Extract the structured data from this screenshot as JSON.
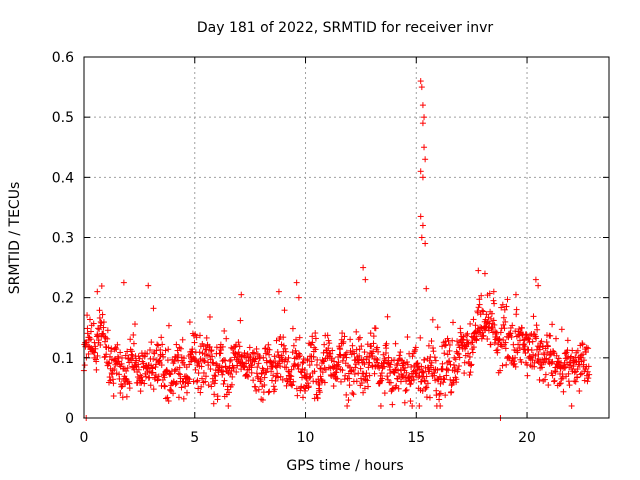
{
  "chart_data": {
    "type": "scatter",
    "title": "Day 181 of 2022, SRMTID for receiver invr",
    "xlabel": "GPS time / hours",
    "ylabel": "SRMTID / TECUs",
    "xlim": [
      0,
      23.7
    ],
    "ylim": [
      0,
      0.6
    ],
    "xticks": [
      0,
      5,
      10,
      15,
      20
    ],
    "yticks": [
      0,
      0.1,
      0.2,
      0.3,
      0.4,
      0.5,
      0.6
    ],
    "xtick_labels": [
      "0",
      "5",
      "10",
      "15",
      "20"
    ],
    "ytick_labels": [
      "0",
      "0.1",
      "0.2",
      "0.3",
      "0.4",
      "0.5",
      "0.6"
    ],
    "grid": true,
    "marker": "+",
    "color": "#ff0000",
    "series": [
      {
        "name": "SRMTID",
        "baseline_profile": [
          [
            0.0,
            0.11
          ],
          [
            0.5,
            0.12
          ],
          [
            0.8,
            0.14
          ],
          [
            1.2,
            0.09
          ],
          [
            2.0,
            0.08
          ],
          [
            3.0,
            0.09
          ],
          [
            4.0,
            0.075
          ],
          [
            5.0,
            0.09
          ],
          [
            6.0,
            0.08
          ],
          [
            7.0,
            0.09
          ],
          [
            8.0,
            0.075
          ],
          [
            9.0,
            0.09
          ],
          [
            10.0,
            0.075
          ],
          [
            11.0,
            0.08
          ],
          [
            12.0,
            0.085
          ],
          [
            13.0,
            0.09
          ],
          [
            14.0,
            0.08
          ],
          [
            15.0,
            0.07
          ],
          [
            16.0,
            0.075
          ],
          [
            17.0,
            0.1
          ],
          [
            18.0,
            0.15
          ],
          [
            19.0,
            0.13
          ],
          [
            20.0,
            0.12
          ],
          [
            21.0,
            0.09
          ],
          [
            22.0,
            0.08
          ],
          [
            22.8,
            0.09
          ]
        ],
        "spikes": [
          [
            0.6,
            0.21
          ],
          [
            1.8,
            0.225
          ],
          [
            2.9,
            0.22
          ],
          [
            7.1,
            0.205
          ],
          [
            8.8,
            0.21
          ],
          [
            9.6,
            0.225
          ],
          [
            9.7,
            0.2
          ],
          [
            12.6,
            0.25
          ],
          [
            12.7,
            0.23
          ],
          [
            15.2,
            0.56
          ],
          [
            15.25,
            0.55
          ],
          [
            15.3,
            0.52
          ],
          [
            15.35,
            0.5
          ],
          [
            15.3,
            0.49
          ],
          [
            15.35,
            0.45
          ],
          [
            15.4,
            0.43
          ],
          [
            15.2,
            0.41
          ],
          [
            15.3,
            0.4
          ],
          [
            15.2,
            0.335
          ],
          [
            15.3,
            0.32
          ],
          [
            15.25,
            0.3
          ],
          [
            15.4,
            0.29
          ],
          [
            15.45,
            0.215
          ],
          [
            17.8,
            0.245
          ],
          [
            18.1,
            0.24
          ],
          [
            18.5,
            0.21
          ],
          [
            19.5,
            0.205
          ],
          [
            20.4,
            0.23
          ],
          [
            20.5,
            0.22
          ],
          [
            0.1,
            0.0
          ],
          [
            18.8,
            0.0
          ]
        ]
      }
    ]
  }
}
